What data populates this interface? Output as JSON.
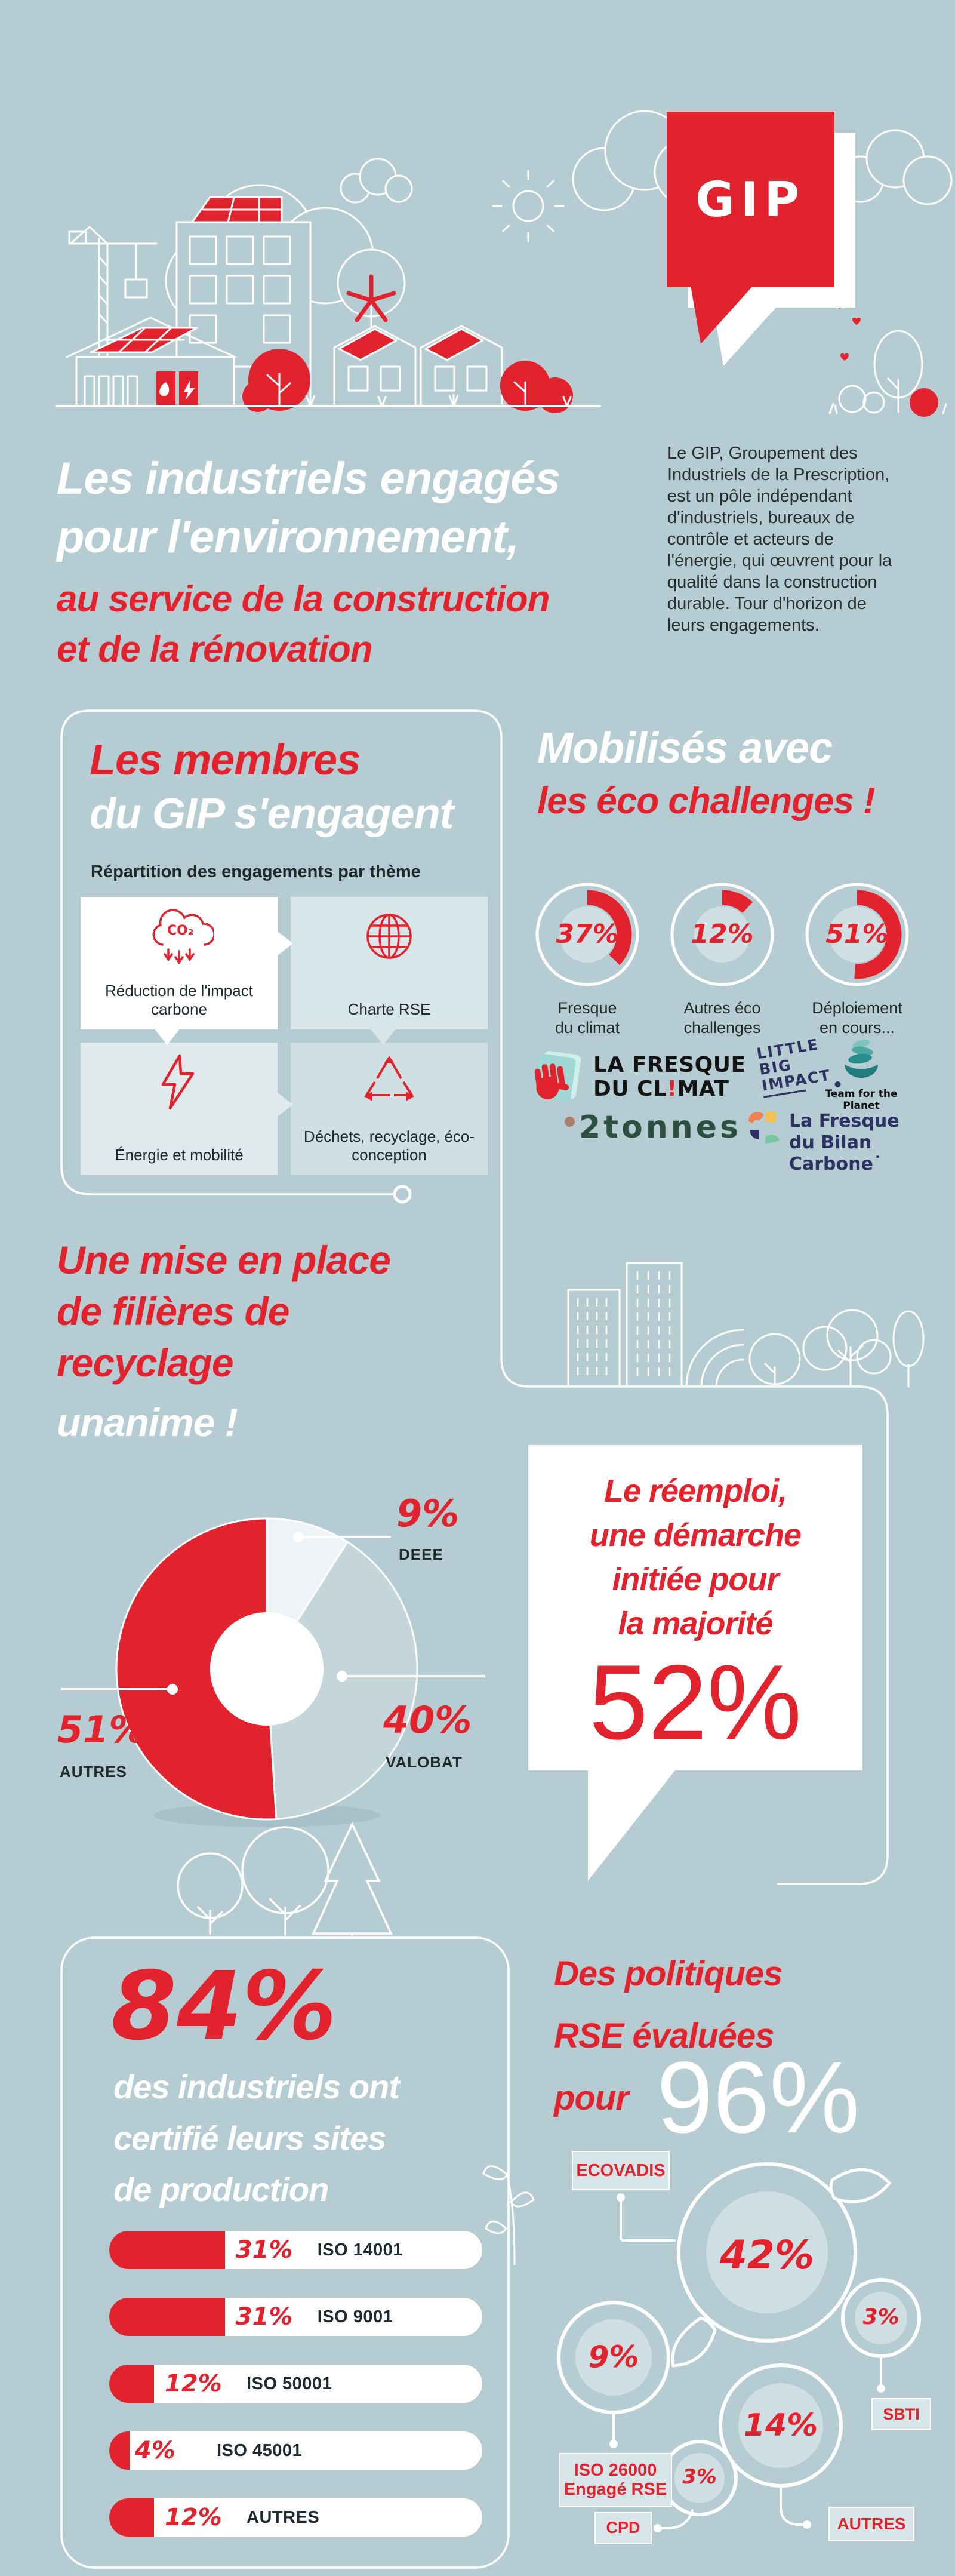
{
  "page_title": "Infographie GIP — Les industriels engagés pour l'environnement",
  "colors": {
    "background": "#b6ccd3",
    "accent_red": "#e2232e",
    "white": "#ffffff",
    "dark_text": "#20292e",
    "card_tint_1": "#ffffff",
    "card_tint_2": "#d8e5e9",
    "card_tint_3": "#e0eaec",
    "card_tint_4": "#cfdfe3",
    "donut_inner": "#cfdfe4",
    "navy": "#2d3263",
    "teal": "#2a8b8c",
    "green_dark": "#2c4f3f"
  },
  "hero": {
    "logo_text": "GIP",
    "title_line1": "Les industriels engagés",
    "title_line2": "pour l'environnement,",
    "title_line3": "au service de la construction",
    "title_line4": "et de la rénovation",
    "intro": "Le GIP, Groupement des Industriels de la Prescription, est un pôle indépendant d'industriels, bureaux de contrôle et acteurs de l'énergie, qui œuvrent pour la qualité dans la construction durable. Tour d'horizon de leurs engagements."
  },
  "members": {
    "heading_line1": "Les membres",
    "heading_line2": "du GIP s'engagent",
    "subtitle": "Répartition des engagements par thème",
    "cards": [
      {
        "label": "Réduction de l'impact carbone",
        "icon": "co2-cloud-icon",
        "icon_text": "CO₂"
      },
      {
        "label": "Charte RSE",
        "icon": "globe-icon"
      },
      {
        "label": "Énergie et mobilité",
        "icon": "lightning-icon"
      },
      {
        "label": "Déchets, recyclage, éco-conception",
        "icon": "recycle-icon"
      }
    ]
  },
  "eco_challenges": {
    "heading_line1": "Mobilisés avec",
    "heading_line2": "les éco challenges !",
    "donuts": [
      {
        "pct": "37%",
        "label_line1": "Fresque",
        "label_line2": "du climat"
      },
      {
        "pct": "12%",
        "label_line1": "Autres éco",
        "label_line2": "challenges"
      },
      {
        "pct": "51%",
        "label_line1": "Déploiement",
        "label_line2": "en cours..."
      }
    ],
    "partners": {
      "fresque_climat": {
        "line1": "LA FRESQUE",
        "line2_a": "DU CL",
        "line2_bang": "!",
        "line2_b": "MAT"
      },
      "little_big_impact": {
        "line1": "LITTLE",
        "line2": "BIG",
        "line3": "IMPACT"
      },
      "team_for_the_planet": {
        "label": "Team for the Planet"
      },
      "deux_tonnes": {
        "label": "2tonnes"
      },
      "fresque_bilan_carbone": {
        "line1": "La Fresque",
        "line2": "du Bilan Carbone˙"
      }
    }
  },
  "recycling": {
    "heading_line1": "Une mise en place",
    "heading_line2": "de filières de",
    "heading_line3": "recyclage",
    "heading_line4": "unanime !",
    "pie_labels": {
      "deee": {
        "pct": "9%",
        "label": "DEEE"
      },
      "valobat": {
        "pct": "40%",
        "label": "VALOBAT"
      },
      "autres": {
        "pct": "51%",
        "label": "AUTRES"
      }
    },
    "speech_bubble": {
      "line1": "Le réemploi,",
      "line2": "une démarche",
      "line3": "initiée pour",
      "line4": "la majorité",
      "value": "52%"
    }
  },
  "certifications": {
    "big_value": "84%",
    "line1": "des industriels ont",
    "line2": "certifié leurs sites",
    "line3": "de production",
    "bars": [
      {
        "pct": "31%",
        "label": "ISO 14001"
      },
      {
        "pct": "31%",
        "label": "ISO 9001"
      },
      {
        "pct": "12%",
        "label": "ISO 50001"
      },
      {
        "pct": "4%",
        "label": "ISO 45001"
      },
      {
        "pct": "12%",
        "label": "AUTRES"
      }
    ]
  },
  "rse_policies": {
    "heading_line1": "Des politiques",
    "heading_line2": "RSE évaluées",
    "heading_line3": "pour",
    "big_value": "96%",
    "bubbles": {
      "ecovadis": {
        "label": "ECOVADIS",
        "pct": "42%"
      },
      "iso26000": {
        "pct": "9%",
        "label_line1": "ISO 26000",
        "label_line2": "Engagé RSE"
      },
      "sbti": {
        "pct": "3%",
        "label": "SBTI"
      },
      "autres": {
        "pct": "14%",
        "label": "AUTRES"
      },
      "cpd": {
        "pct": "3%",
        "label": "CPD"
      }
    }
  },
  "chart_data": [
    {
      "type": "pie",
      "variant": "donut-trio",
      "title": "Mobilisés avec les éco challenges",
      "unit": "%",
      "items": [
        {
          "label": "Fresque du climat",
          "value": 37
        },
        {
          "label": "Autres éco challenges",
          "value": 12
        },
        {
          "label": "Déploiement en cours",
          "value": 51
        }
      ]
    },
    {
      "type": "pie",
      "title": "Mise en place de filières de recyclage",
      "slices": [
        {
          "label": "DEEE",
          "value": 9
        },
        {
          "label": "VALOBAT",
          "value": 40
        },
        {
          "label": "AUTRES",
          "value": 51
        }
      ],
      "colors": [
        "#eef3f5",
        "#c5d6db",
        "#e2232e"
      ],
      "start_angle_deg": -90,
      "clockwise": true,
      "donut_hole": true
    },
    {
      "type": "bar",
      "title": "84% des industriels ont certifié leurs sites de production",
      "orientation": "horizontal",
      "unit": "%",
      "categories": [
        "ISO 14001",
        "ISO 9001",
        "ISO 50001",
        "ISO 45001",
        "AUTRES"
      ],
      "values": [
        31,
        31,
        12,
        4,
        12
      ]
    },
    {
      "type": "bubble",
      "title": "Des politiques RSE évaluées pour 96%",
      "unit": "%",
      "items": [
        {
          "label": "ECOVADIS",
          "value": 42
        },
        {
          "label": "ISO 26000 / Engagé RSE",
          "value": 9
        },
        {
          "label": "SBTI",
          "value": 3
        },
        {
          "label": "AUTRES",
          "value": 14
        },
        {
          "label": "CPD",
          "value": 3
        }
      ]
    }
  ]
}
